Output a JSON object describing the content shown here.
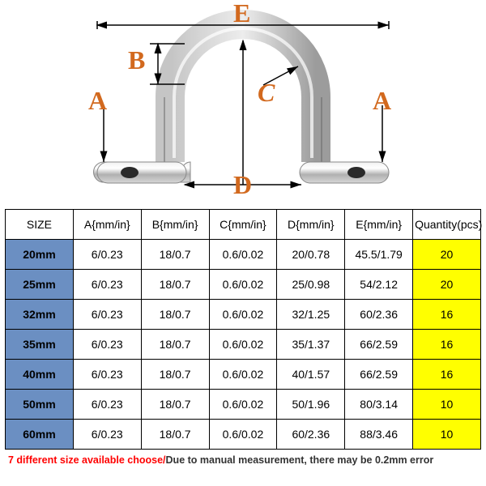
{
  "diagram": {
    "labels": {
      "A": "A",
      "B": "B",
      "C": "C",
      "D": "D",
      "E": "E"
    },
    "label_color": "#d2691e",
    "label_fontsize": 32,
    "arrow_color": "#000000",
    "clamp_outline": "#888888",
    "clamp_highlight": "#cccccc"
  },
  "table": {
    "columns": [
      "SIZE",
      "A{mm/in}",
      "B{mm/in}",
      "C{mm/in}",
      "D{mm/in}",
      "E{mm/in}",
      "Quantity(pcs)"
    ],
    "rows": [
      [
        "20mm",
        "6/0.23",
        "18/0.7",
        "0.6/0.02",
        "20/0.78",
        "45.5/1.79",
        "20"
      ],
      [
        "25mm",
        "6/0.23",
        "18/0.7",
        "0.6/0.02",
        "25/0.98",
        "54/2.12",
        "20"
      ],
      [
        "32mm",
        "6/0.23",
        "18/0.7",
        "0.6/0.02",
        "32/1.25",
        "60/2.36",
        "16"
      ],
      [
        "35mm",
        "6/0.23",
        "18/0.7",
        "0.6/0.02",
        "35/1.37",
        "66/2.59",
        "16"
      ],
      [
        "40mm",
        "6/0.23",
        "18/0.7",
        "0.6/0.02",
        "40/1.57",
        "66/2.59",
        "16"
      ],
      [
        "50mm",
        "6/0.23",
        "18/0.7",
        "0.6/0.02",
        "50/1.96",
        "80/3.14",
        "10"
      ],
      [
        "60mm",
        "6/0.23",
        "18/0.7",
        "0.6/0.02",
        "60/2.36",
        "88/3.46",
        "10"
      ]
    ],
    "size_col_bg": "#6b8fc2",
    "qty_col_bg": "#ffff00",
    "border_color": "#000000"
  },
  "note": {
    "part_a": "7 different size available choose/",
    "part_b": "Due to manual measurement, there may be 0.2mm error"
  }
}
